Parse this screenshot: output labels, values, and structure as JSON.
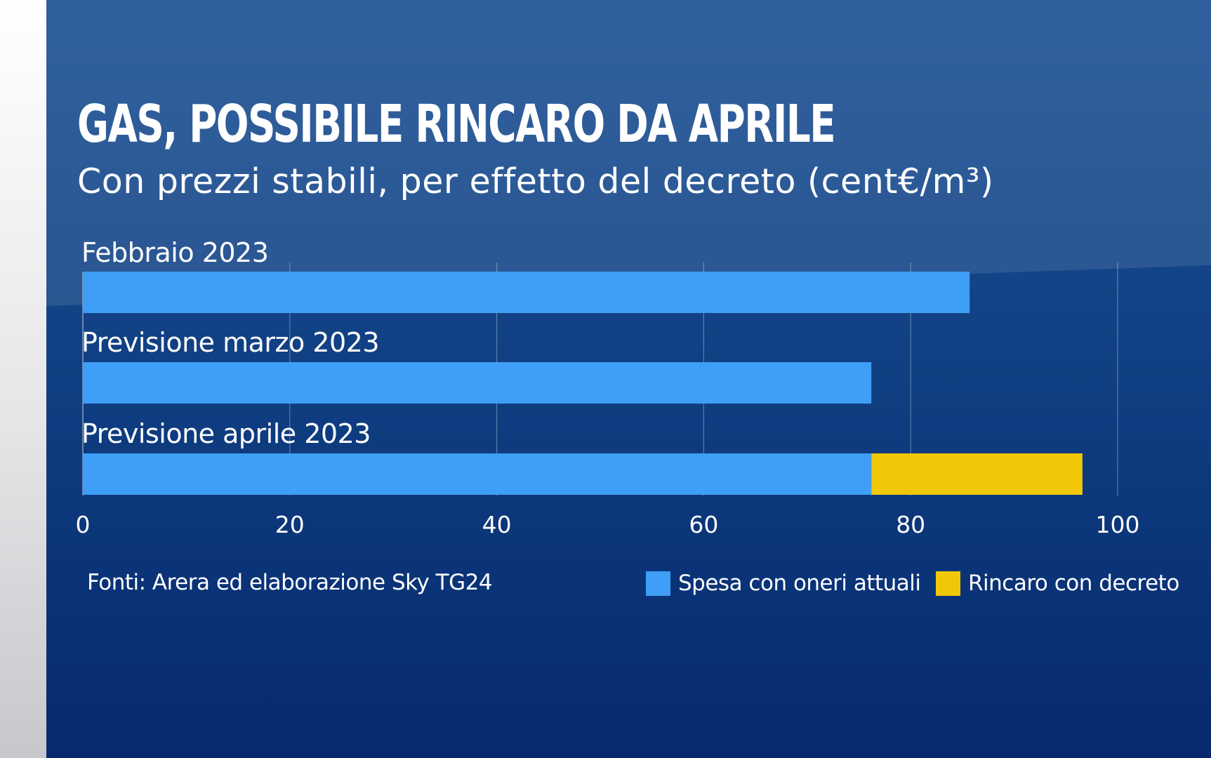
{
  "chart_data": {
    "type": "bar",
    "orientation": "horizontal",
    "stacked": true,
    "title": "GAS, POSSIBILE RINCARO DA APRILE",
    "subtitle": "Con prezzi stabili, per effetto del decreto (cent€/m³)",
    "categories": [
      "Febbraio 2023",
      "Previsione marzo 2023",
      "Previsione aprile 2023"
    ],
    "series": [
      {
        "name": "Spesa con oneri attuali",
        "color": "#3f9ef6",
        "values": [
          85.7,
          76.2,
          76.2
        ]
      },
      {
        "name": "Rincaro con decreto",
        "color": "#f0c808",
        "values": [
          0,
          0,
          20.4
        ]
      }
    ],
    "xlim": [
      0,
      100
    ],
    "xticks": [
      "0",
      "20",
      "40",
      "60",
      "80",
      "100"
    ],
    "grid": true,
    "legend_position": "bottom-right",
    "source": "Fonti: Arera ed elaborazione Sky TG24"
  }
}
